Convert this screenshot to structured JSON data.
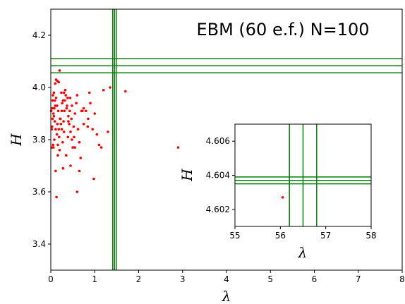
{
  "chart_data": {
    "type": "scatter",
    "title": "EBM (60 e.f.) N=100",
    "xlabel": "λ",
    "ylabel": "H",
    "xlim": [
      0,
      8
    ],
    "ylim": [
      3.3,
      4.3
    ],
    "xticks": [
      "0",
      "1",
      "2",
      "3",
      "4",
      "5",
      "6",
      "7",
      "8"
    ],
    "yticks": [
      "3.4",
      "3.6",
      "3.8",
      "4.0",
      "4.2"
    ],
    "grid": false,
    "colors": {
      "points": "#ff0000",
      "lines": "#008000",
      "axes": "#000000"
    },
    "reference_lines": {
      "vertical_x": [
        1.41,
        1.45,
        1.49
      ],
      "horizontal_y": [
        4.056,
        4.083,
        4.11
      ]
    },
    "points": [
      [
        0.05,
        3.78
      ],
      [
        0.08,
        3.8
      ],
      [
        0.03,
        3.85
      ],
      [
        0.06,
        3.9
      ],
      [
        0.1,
        3.93
      ],
      [
        0.12,
        3.96
      ],
      [
        0.05,
        3.97
      ],
      [
        0.09,
        3.87
      ],
      [
        0.14,
        3.82
      ],
      [
        0.16,
        3.74
      ],
      [
        0.2,
        3.76
      ],
      [
        0.18,
        3.84
      ],
      [
        0.22,
        3.88
      ],
      [
        0.25,
        3.91
      ],
      [
        0.28,
        3.95
      ],
      [
        0.3,
        3.98
      ],
      [
        0.33,
        3.99
      ],
      [
        0.36,
        3.92
      ],
      [
        0.4,
        3.89
      ],
      [
        0.42,
        3.86
      ],
      [
        0.45,
        3.83
      ],
      [
        0.48,
        3.8
      ],
      [
        0.5,
        3.77
      ],
      [
        0.52,
        3.85
      ],
      [
        0.55,
        3.9
      ],
      [
        0.58,
        3.94
      ],
      [
        0.6,
        3.97
      ],
      [
        0.62,
        3.84
      ],
      [
        0.65,
        3.79
      ],
      [
        0.68,
        3.73
      ],
      [
        0.7,
        3.91
      ],
      [
        0.75,
        3.92
      ],
      [
        0.8,
        3.91
      ],
      [
        0.85,
        3.88
      ],
      [
        0.88,
        3.98
      ],
      [
        0.9,
        3.94
      ],
      [
        0.95,
        3.84
      ],
      [
        1.0,
        3.9
      ],
      [
        1.05,
        3.82
      ],
      [
        1.1,
        3.78
      ],
      [
        1.15,
        3.77
      ],
      [
        1.2,
        3.99
      ],
      [
        1.3,
        3.83
      ],
      [
        1.35,
        4.0
      ],
      [
        0.2,
        4.065
      ],
      [
        0.15,
        4.025
      ],
      [
        0.12,
        4.03
      ],
      [
        0.18,
        4.02
      ],
      [
        0.1,
        4.015
      ],
      [
        0.07,
        3.98
      ],
      [
        0.03,
        3.92
      ],
      [
        0.04,
        3.88
      ],
      [
        0.02,
        3.77
      ],
      [
        0.06,
        3.77
      ],
      [
        0.11,
        3.68
      ],
      [
        0.13,
        3.58
      ],
      [
        0.28,
        3.69
      ],
      [
        0.45,
        3.7
      ],
      [
        0.55,
        3.77
      ],
      [
        0.6,
        3.6
      ],
      [
        0.65,
        3.68
      ],
      [
        0.98,
        3.65
      ],
      [
        0.35,
        3.74
      ],
      [
        0.4,
        3.87
      ],
      [
        0.3,
        3.83
      ],
      [
        0.25,
        3.84
      ],
      [
        0.23,
        3.86
      ],
      [
        0.38,
        3.96
      ],
      [
        0.32,
        3.95
      ],
      [
        0.26,
        3.94
      ],
      [
        0.17,
        3.91
      ],
      [
        0.14,
        3.93
      ],
      [
        0.09,
        3.95
      ],
      [
        0.08,
        3.92
      ],
      [
        0.07,
        3.89
      ],
      [
        0.21,
        3.88
      ],
      [
        0.24,
        3.98
      ],
      [
        0.34,
        3.97
      ],
      [
        0.44,
        3.96
      ],
      [
        0.48,
        3.93
      ],
      [
        0.15,
        3.86
      ],
      [
        0.11,
        3.84
      ],
      [
        0.27,
        3.79
      ],
      [
        0.19,
        3.81
      ],
      [
        0.39,
        3.81
      ],
      [
        0.84,
        3.85
      ],
      [
        0.72,
        3.91
      ],
      [
        0.75,
        3.86
      ],
      [
        1.7,
        3.985
      ],
      [
        2.9,
        3.77
      ],
      [
        0.02,
        3.84
      ],
      [
        0.01,
        3.91
      ],
      [
        0.04,
        3.95
      ],
      [
        0.29,
        3.87
      ],
      [
        0.31,
        3.91
      ],
      [
        0.37,
        3.93
      ],
      [
        0.43,
        3.91
      ],
      [
        0.47,
        3.88
      ],
      [
        0.53,
        3.81
      ],
      [
        0.16,
        3.78
      ]
    ],
    "inset": {
      "xlabel": "λ",
      "ylabel": "H",
      "xlim": [
        55,
        58
      ],
      "ylim": [
        4.601,
        4.607
      ],
      "xticks": [
        "55",
        "56",
        "57",
        "58"
      ],
      "yticks": [
        "4.602",
        "4.604",
        "4.606"
      ],
      "reference_lines": {
        "vertical_x": [
          56.2,
          56.5,
          56.8
        ],
        "horizontal_y": [
          4.6035,
          4.6037,
          4.6039
        ]
      },
      "points": [
        [
          56.05,
          4.6027
        ]
      ]
    }
  }
}
